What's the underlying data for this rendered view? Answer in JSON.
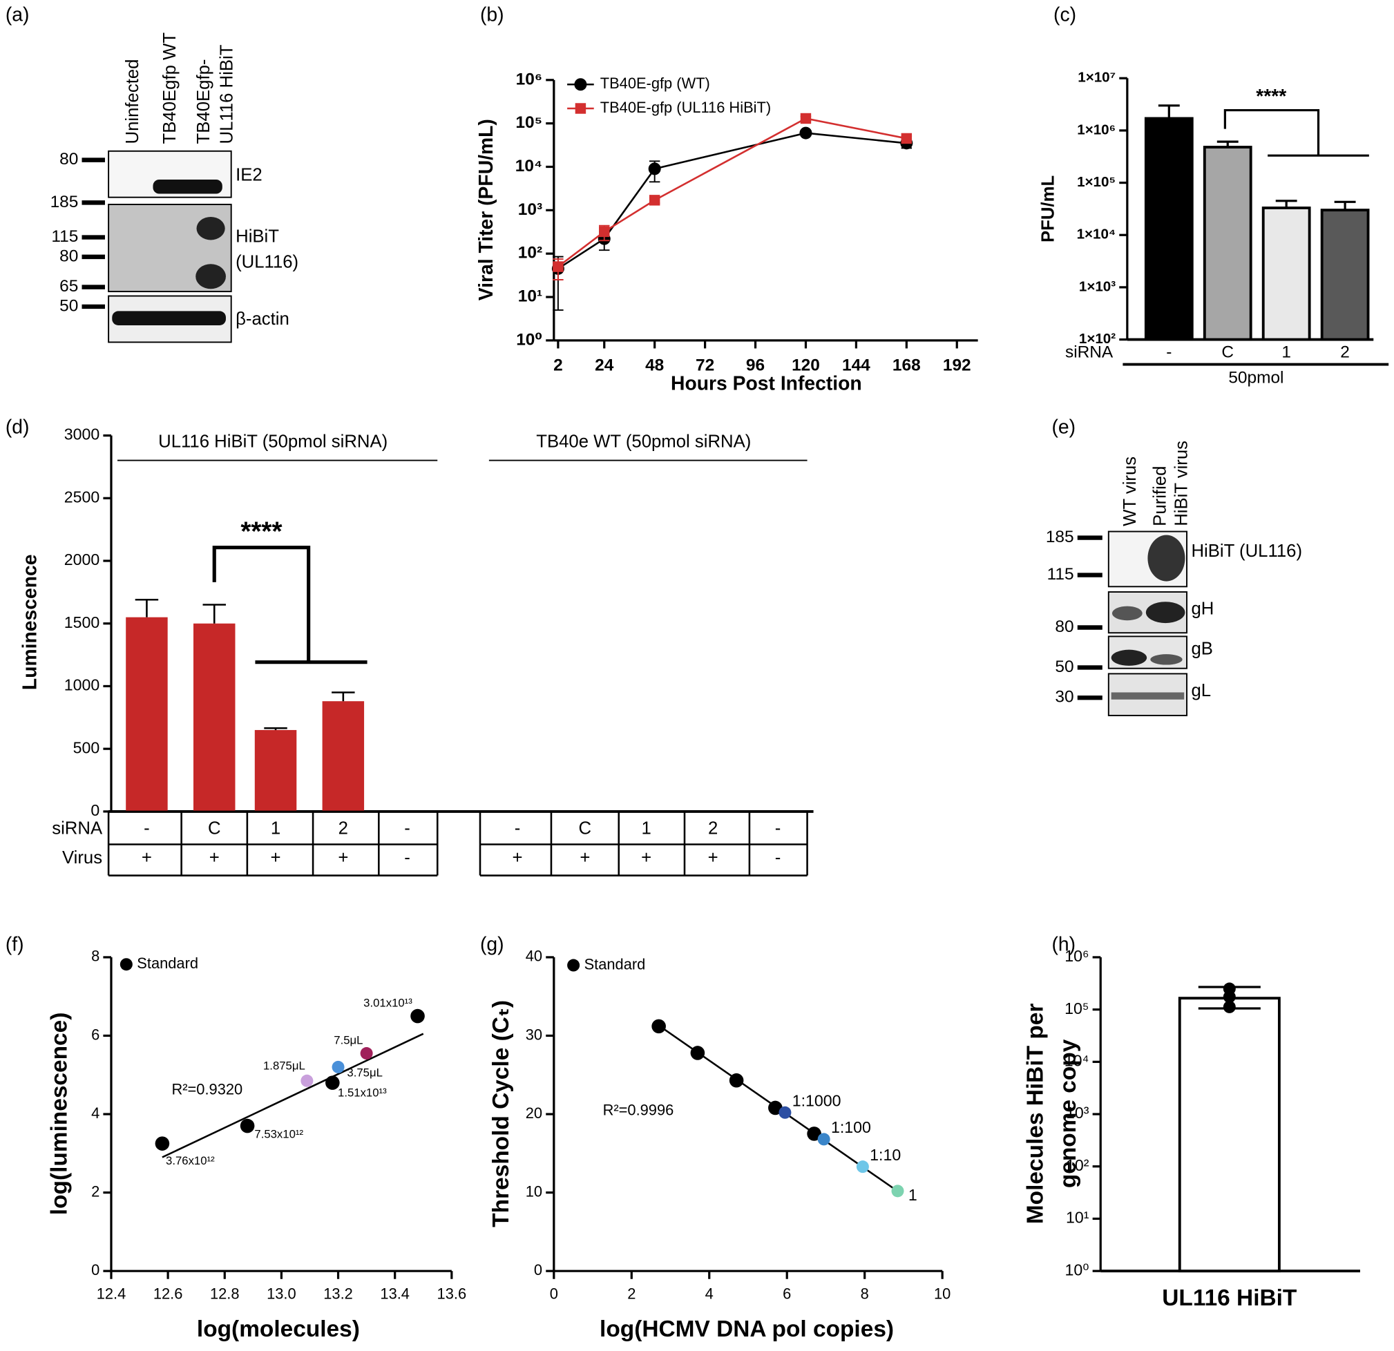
{
  "blot_a": {
    "label": "(a)",
    "lanes": [
      "Uninfected",
      "TB40Egfp WT",
      [
        "TB40Egfp-",
        "UL116 HiBiT"
      ]
    ],
    "markers": [
      80,
      185,
      115,
      80,
      65,
      50
    ],
    "bands": [
      "IE2",
      "HiBiT",
      "(UL116)",
      "β-actin"
    ]
  },
  "blot_e": {
    "label": "(e)",
    "lanes": [
      "WT virus",
      [
        "Purified",
        "HiBiT virus"
      ]
    ],
    "markers": [
      185,
      115,
      80,
      50,
      30
    ],
    "bands": [
      "HiBiT (UL116)",
      "gH",
      "gB",
      "gL"
    ]
  },
  "chart_data": [
    {
      "type": "line",
      "label": "(b)",
      "xlabel": "Hours Post Infection",
      "ylabel": "Viral Titer (PFU/mL)",
      "x": [
        2,
        24,
        48,
        120,
        168
      ],
      "xlim": [
        0,
        202
      ],
      "xticks": [
        2,
        24,
        48,
        72,
        96,
        120,
        144,
        168,
        192
      ],
      "ylog": true,
      "ylim": [
        1,
        1000000
      ],
      "yticks": [
        {
          "value": 1,
          "label": "10⁰"
        },
        {
          "value": 10,
          "label": "10¹"
        },
        {
          "value": 100,
          "label": "10²"
        },
        {
          "value": 1000,
          "label": "10³"
        },
        {
          "value": 10000,
          "label": "10⁴"
        },
        {
          "value": 100000,
          "label": "10⁵"
        },
        {
          "value": 1000000,
          "label": "10⁶"
        }
      ],
      "series": [
        {
          "name": "TB40E-gfp (WT)",
          "color": "#000000",
          "marker": "circle",
          "values": [
            45,
            220,
            9000,
            60000,
            35000
          ],
          "errors": [
            40,
            100,
            4500,
            8000,
            8000
          ]
        },
        {
          "name": "TB40E-gfp (UL116 HiBiT)",
          "color": "#d32f2f",
          "marker": "square",
          "values": [
            50,
            320,
            1700,
            130000,
            45000
          ],
          "errors": [
            25,
            120,
            250,
            15000,
            6000
          ]
        }
      ]
    },
    {
      "type": "bar",
      "label": "(c)",
      "ylabel": "PFU/mL",
      "ylog": true,
      "ylim": [
        100,
        10000000
      ],
      "yticks": [
        {
          "value": 100,
          "label": "1×10²"
        },
        {
          "value": 1000,
          "label": "1×10³"
        },
        {
          "value": 10000,
          "label": "1×10⁴"
        },
        {
          "value": 100000,
          "label": "1×10⁵"
        },
        {
          "value": 1000000,
          "label": "1×10⁶"
        },
        {
          "value": 10000000,
          "label": "1×10⁷"
        }
      ],
      "categories": [
        "-",
        "C",
        "1",
        "2"
      ],
      "values": [
        1700000,
        480000,
        33000,
        30000
      ],
      "errors": [
        1300000,
        130000,
        12000,
        13000
      ],
      "colors": [
        "#000000",
        "#a6a6a6",
        "#e8e8e8",
        "#595959"
      ],
      "row_label": "siRNA",
      "group_label": "50pmol",
      "annotation": "****"
    },
    {
      "type": "bar",
      "label": "(d)",
      "ylabel": "Luminescence",
      "ylim": [
        0,
        3000
      ],
      "yticks": [
        0,
        500,
        1000,
        1500,
        2000,
        2500,
        3000
      ],
      "color": "#c62828",
      "row_labels": [
        "siRNA",
        "Virus"
      ],
      "annotation": "****",
      "groups": [
        {
          "name": "UL116 HiBiT (50pmol siRNA)",
          "values": [
            1550,
            1500,
            650,
            880,
            0
          ],
          "errors": [
            140,
            150,
            15,
            70,
            null
          ],
          "rows": [
            [
              "-",
              "C",
              "1",
              "2",
              "-"
            ],
            [
              "+",
              "+",
              "+",
              "+",
              "-"
            ]
          ]
        },
        {
          "name": "TB40e WT (50pmol siRNA)",
          "values": [
            0,
            0,
            0,
            0,
            0
          ],
          "errors": [
            null,
            null,
            null,
            null,
            null
          ],
          "rows": [
            [
              "-",
              "C",
              "1",
              "2",
              "-"
            ],
            [
              "+",
              "+",
              "+",
              "+",
              "-"
            ]
          ]
        }
      ]
    },
    {
      "type": "scatter",
      "label": "(f)",
      "xlabel": "log(molecules)",
      "ylabel": "log(luminescence)",
      "xlim": [
        12.4,
        13.6
      ],
      "xticks": [
        12.4,
        12.6,
        12.8,
        {
          "value": 13,
          "label": "13.0"
        },
        13.2,
        13.4,
        13.6
      ],
      "ylim": [
        0,
        8
      ],
      "yticks": [
        0,
        2,
        4,
        6,
        8
      ],
      "series": [
        {
          "name": "Standard",
          "color": "#000000",
          "x": [
            12.58,
            12.88,
            13.18,
            13.48
          ],
          "values": [
            3.25,
            3.7,
            4.8,
            6.5
          ],
          "point_labels": [
            "3.76x10¹²",
            "7.53x10¹²",
            "1.51x10¹³",
            "3.01x10¹³"
          ]
        }
      ],
      "samples": [
        {
          "label": "1.875μL",
          "color": "#c9a0dc",
          "x": 13.09,
          "y": 4.85
        },
        {
          "label": "3.75μL",
          "color": "#4a90d9",
          "x": 13.2,
          "y": 5.2
        },
        {
          "label": "7.5μL",
          "color": "#a0205a",
          "x": 13.3,
          "y": 5.55
        }
      ],
      "fit": {
        "x": [
          12.58,
          13.5
        ],
        "y": [
          2.9,
          6.05
        ]
      },
      "annotation": "R²=0.9320"
    },
    {
      "type": "scatter",
      "label": "(g)",
      "xlabel": "log(HCMV DNA pol copies)",
      "ylabel": "Threshold Cycle (Cₜ)",
      "xlim": [
        0,
        10
      ],
      "xticks": [
        0,
        2,
        4,
        6,
        8,
        10
      ],
      "ylim": [
        0,
        40
      ],
      "yticks": [
        0,
        10,
        20,
        30,
        40
      ],
      "series": [
        {
          "name": "Standard",
          "color": "#000000",
          "x": [
            2.7,
            3.7,
            4.7,
            5.7,
            6.7
          ],
          "values": [
            31.2,
            27.8,
            24.3,
            20.8,
            17.5
          ]
        }
      ],
      "samples": [
        {
          "label": "1:1000",
          "color": "#2c4fa3",
          "x": 5.95,
          "y": 20.2
        },
        {
          "label": "1:100",
          "color": "#3a85c9",
          "x": 6.95,
          "y": 16.8
        },
        {
          "label": "1:10",
          "color": "#6ec6e8",
          "x": 7.95,
          "y": 13.3
        },
        {
          "label": "1",
          "color": "#7dd3b0",
          "x": 8.85,
          "y": 10.2
        }
      ],
      "fit": {
        "x": [
          2.7,
          8.9
        ],
        "y": [
          31.3,
          10
        ]
      },
      "annotation": "R²=0.9996"
    },
    {
      "type": "bar",
      "label": "(h)",
      "ylabel": [
        "Molecules HiBiT per",
        "genome copy"
      ],
      "ylog": true,
      "ylim": [
        1,
        1000000
      ],
      "yticks": [
        {
          "value": 1,
          "label": "10⁰"
        },
        {
          "value": 10,
          "label": "10¹"
        },
        {
          "value": 100,
          "label": "10²"
        },
        {
          "value": 1000,
          "label": "10³"
        },
        {
          "value": 10000,
          "label": "10⁴"
        },
        {
          "value": 100000,
          "label": "10⁵"
        },
        {
          "value": 1000000,
          "label": "10⁶"
        }
      ],
      "categories": [
        "UL116 HiBiT"
      ],
      "values": [
        165000
      ],
      "ranges": [
        [
          105000,
          270000
        ]
      ],
      "points": [
        [
          250000,
          175000,
          112000
        ]
      ],
      "colors": [
        "#ffffff"
      ]
    }
  ]
}
